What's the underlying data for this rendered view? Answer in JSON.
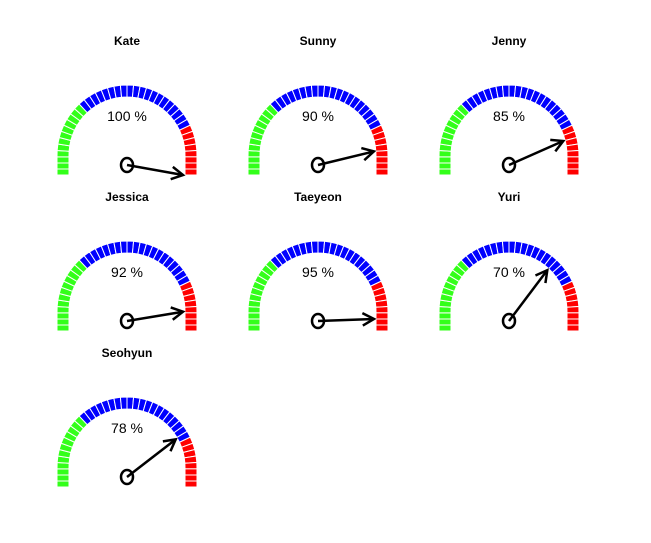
{
  "chart_data": {
    "type": "gauge",
    "scale": [
      0,
      100
    ],
    "unit": "%",
    "bands": [
      {
        "from": 0,
        "to": 30,
        "color": "#33ff1a"
      },
      {
        "from": 30,
        "to": 80,
        "color": "#0000ff"
      },
      {
        "from": 80,
        "to": 100,
        "color": "#ff0000"
      }
    ],
    "gauges": [
      {
        "label": "Kate",
        "value": 100,
        "value_text": "100 %"
      },
      {
        "label": "Sunny",
        "value": 90,
        "value_text": "90 %"
      },
      {
        "label": "Jenny",
        "value": 85,
        "value_text": "85 %"
      },
      {
        "label": "Jessica",
        "value": 92,
        "value_text": "92 %"
      },
      {
        "label": "Taeyeon",
        "value": 95,
        "value_text": "95 %"
      },
      {
        "label": "Yuri",
        "value": 70,
        "value_text": "70 %"
      },
      {
        "label": "Seohyun",
        "value": 78,
        "value_text": "78 %"
      }
    ],
    "grid": false,
    "legend": "none"
  }
}
